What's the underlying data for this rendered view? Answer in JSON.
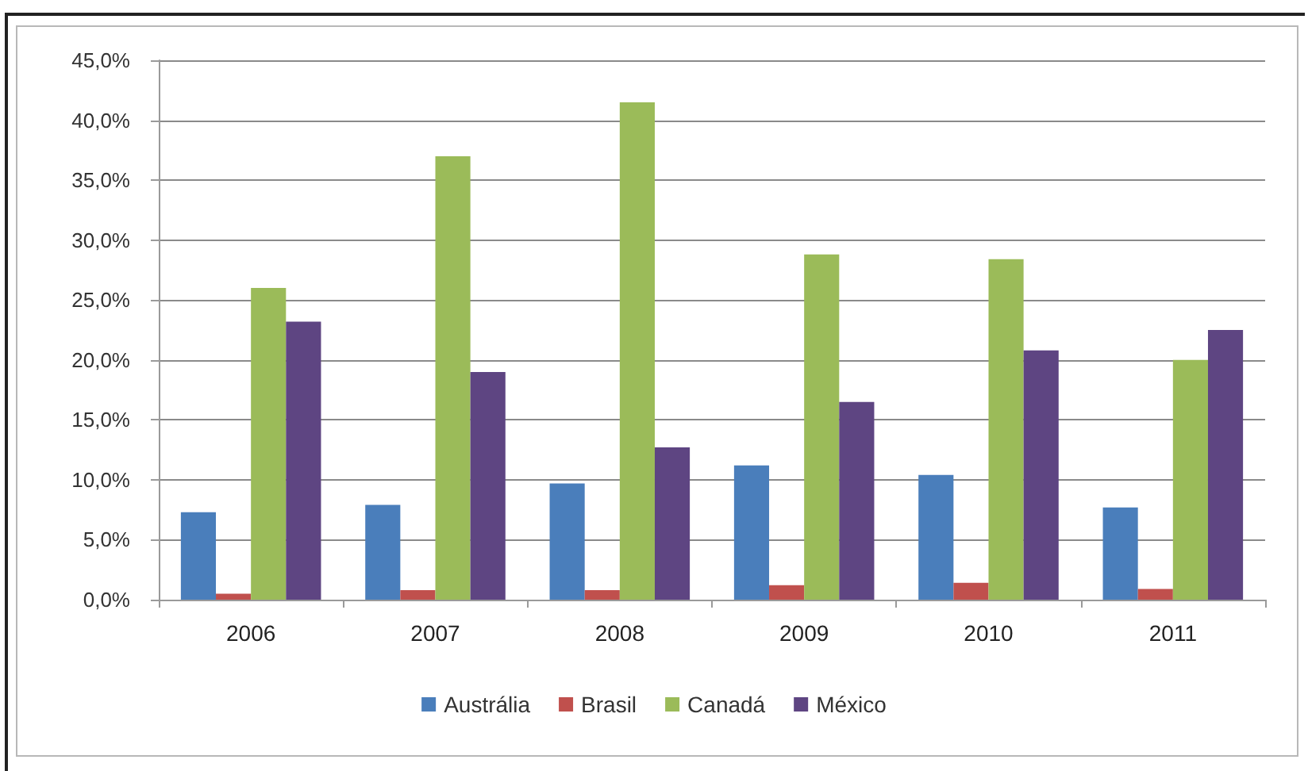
{
  "chart_data": {
    "type": "bar",
    "categories": [
      "2006",
      "2007",
      "2008",
      "2009",
      "2010",
      "2011"
    ],
    "series": [
      {
        "name": "Austrália",
        "color": "#4a7ebb",
        "values": [
          7.3,
          7.9,
          9.7,
          11.2,
          10.4,
          7.7
        ]
      },
      {
        "name": "Brasil",
        "color": "#c0504d",
        "values": [
          0.5,
          0.8,
          0.8,
          1.2,
          1.4,
          0.9
        ]
      },
      {
        "name": "Canadá",
        "color": "#9bbb59",
        "values": [
          26.0,
          37.0,
          41.5,
          28.8,
          28.4,
          20.0
        ]
      },
      {
        "name": "México",
        "color": "#5e4582",
        "values": [
          23.2,
          19.0,
          12.7,
          16.5,
          20.8,
          22.5
        ]
      }
    ],
    "ylim": [
      0,
      45
    ],
    "yticks": [
      {
        "value": 0,
        "label": "0,0%"
      },
      {
        "value": 5,
        "label": "5,0%"
      },
      {
        "value": 10,
        "label": "10,0%"
      },
      {
        "value": 15,
        "label": "15,0%"
      },
      {
        "value": 20,
        "label": "20,0%"
      },
      {
        "value": 25,
        "label": "25,0%"
      },
      {
        "value": 30,
        "label": "30,0%"
      },
      {
        "value": 35,
        "label": "35,0%"
      },
      {
        "value": 40,
        "label": "40,0%"
      },
      {
        "value": 45,
        "label": "45,0%"
      }
    ],
    "grid": "y",
    "legend": "bottom"
  }
}
